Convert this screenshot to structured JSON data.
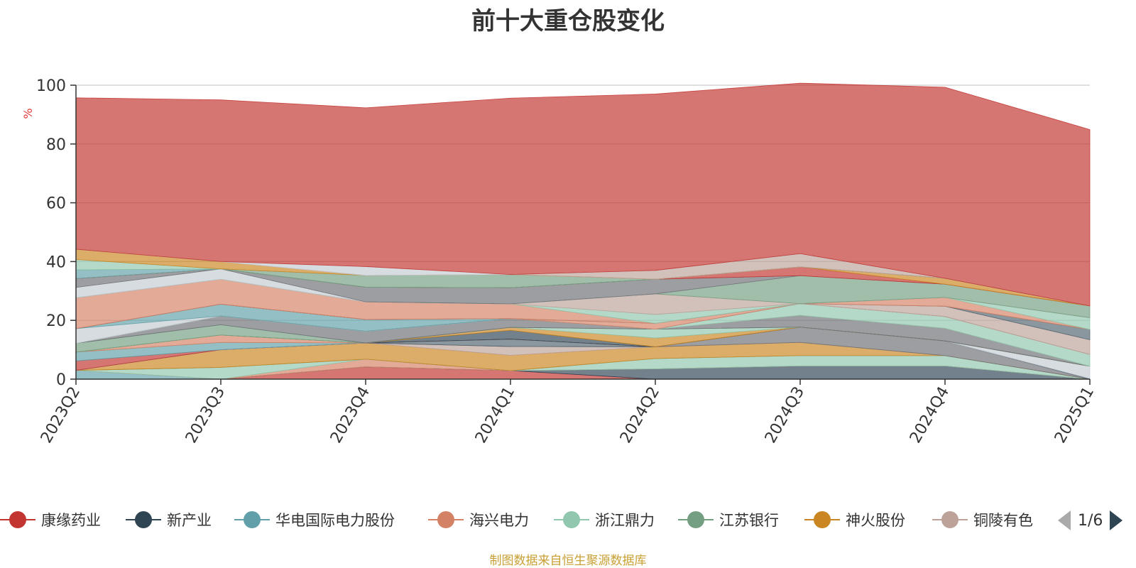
{
  "title": "前十大重仓股变化",
  "source_note": "制图数据来自恒生聚源数据库",
  "pager": {
    "text": "1/6"
  },
  "legend_icons": {
    "prev": "triangle-left-icon",
    "next": "triangle-right-icon"
  },
  "chart_data": {
    "type": "area",
    "stacked": true,
    "title": "前十大重仓股变化",
    "ylabel": "%",
    "ylim": [
      0,
      100
    ],
    "yticks": [
      0,
      20,
      40,
      60,
      80,
      100
    ],
    "grid": true,
    "legend_position": "bottom",
    "categories": [
      "2023Q2",
      "2023Q3",
      "2023Q4",
      "2024Q1",
      "2024Q2",
      "2024Q3",
      "2024Q4",
      "2025Q1"
    ],
    "legend": [
      {
        "name": "康缘药业",
        "color": "#c23531"
      },
      {
        "name": "新产业",
        "color": "#2f4554"
      },
      {
        "name": "华电国际电力股份",
        "color": "#61a0a8"
      },
      {
        "name": "海兴电力",
        "color": "#d48265"
      },
      {
        "name": "浙江鼎力",
        "color": "#91c7ae"
      },
      {
        "name": "江苏银行",
        "color": "#749f83"
      },
      {
        "name": "神火股份",
        "color": "#ca8622"
      },
      {
        "name": "铜陵有色",
        "color": "#bda29a"
      }
    ],
    "series": [
      {
        "color": "#c23531",
        "values": [
          0,
          0,
          4.2,
          2.9,
          0,
          0,
          0,
          0
        ]
      },
      {
        "color": "#2f4554",
        "values": [
          0,
          0,
          0,
          0,
          3.5,
          4.5,
          4.5,
          0
        ]
      },
      {
        "color": "#61a0a8",
        "values": [
          3.0,
          0,
          0,
          0,
          0,
          0,
          0,
          0
        ]
      },
      {
        "color": "#d48265",
        "values": [
          0,
          0,
          2.6,
          0,
          0,
          0,
          0,
          0
        ]
      },
      {
        "color": "#91c7ae",
        "values": [
          0,
          4.0,
          0,
          0,
          3.5,
          3.5,
          3.5,
          0
        ]
      },
      {
        "color": "#749f83",
        "values": [
          0,
          0,
          0,
          0,
          0,
          0,
          0,
          0
        ]
      },
      {
        "color": "#ca8622",
        "values": [
          0,
          6.0,
          5.5,
          5.2,
          4.0,
          4.5,
          0,
          0
        ]
      },
      {
        "color": "#bda29a",
        "values": [
          0,
          0,
          0,
          3.0,
          0,
          0,
          0,
          0
        ]
      },
      {
        "color": "#6e7074",
        "values": [
          0,
          0,
          0,
          0,
          0,
          5.2,
          5.0,
          0
        ]
      },
      {
        "color": "#546570",
        "values": [
          0,
          0,
          0,
          2.5,
          0,
          0,
          0,
          0.2
        ]
      },
      {
        "color": "#c4ccd3",
        "values": [
          0,
          0,
          0,
          0,
          0,
          0,
          0,
          4.2
        ]
      },
      {
        "color": "#c23531",
        "values": [
          3.2,
          0,
          0,
          0,
          0,
          0,
          0,
          0
        ]
      },
      {
        "color": "#61a0a8",
        "values": [
          3.0,
          2.5,
          0,
          0,
          0,
          0,
          0,
          0
        ]
      },
      {
        "color": "#d48265",
        "values": [
          0,
          2.5,
          0,
          0,
          0,
          0,
          0,
          0
        ]
      },
      {
        "color": "#2f4554",
        "values": [
          0,
          0,
          0,
          3.0,
          0,
          0,
          0,
          0
        ]
      },
      {
        "color": "#ca8622",
        "values": [
          0,
          0,
          0,
          1.0,
          3.0,
          0,
          0,
          0
        ]
      },
      {
        "color": "#91c7ae",
        "values": [
          0,
          0,
          0,
          0,
          3.0,
          0,
          0,
          0
        ]
      },
      {
        "color": "#749f83",
        "values": [
          3.0,
          3.5,
          0,
          0,
          0,
          0,
          0,
          0
        ]
      },
      {
        "color": "#6e7074",
        "values": [
          0,
          3.0,
          4.0,
          3.0,
          0,
          4.0,
          4.3,
          0
        ]
      },
      {
        "color": "#bda29a",
        "values": [
          0,
          0,
          0,
          0,
          0,
          0,
          0,
          0
        ]
      },
      {
        "color": "#91c7ae",
        "values": [
          0,
          0,
          0,
          0,
          0,
          4.0,
          4.0,
          4.0
        ]
      },
      {
        "color": "#c4ccd3",
        "values": [
          5.0,
          0,
          0,
          0,
          0,
          0,
          0,
          0
        ]
      },
      {
        "color": "#61a0a8",
        "values": [
          0,
          4.0,
          4.0,
          0,
          0,
          0,
          0,
          0
        ]
      },
      {
        "color": "#d48265",
        "values": [
          0,
          0,
          0,
          0,
          2.0,
          0,
          0,
          0
        ]
      },
      {
        "color": "#bda29a",
        "values": [
          0,
          0,
          0,
          0,
          0,
          0,
          3.5,
          5.0
        ]
      },
      {
        "color": "#546570",
        "values": [
          0,
          0,
          0,
          0,
          0,
          0,
          0,
          3.5
        ]
      },
      {
        "color": "#d48265",
        "values": [
          10.5,
          8.5,
          6.0,
          5.0,
          0,
          0,
          3.0,
          0
        ]
      },
      {
        "color": "#91c7ae",
        "values": [
          0,
          0,
          0,
          0,
          3.0,
          0,
          0,
          4.0
        ]
      },
      {
        "color": "#bda29a",
        "values": [
          0,
          0,
          0,
          0,
          7.0,
          0,
          0,
          0
        ]
      },
      {
        "color": "#749f83",
        "values": [
          0,
          0,
          0,
          0,
          0,
          9.5,
          4.5,
          4.0
        ]
      },
      {
        "color": "#c4ccd3",
        "values": [
          3.5,
          3.5,
          0,
          0,
          0,
          0,
          0,
          0
        ]
      },
      {
        "color": "#6e7074",
        "values": [
          3.0,
          0,
          5.0,
          5.5,
          5.0,
          0,
          0,
          0
        ]
      },
      {
        "color": "#c23531",
        "values": [
          0,
          0,
          0,
          0,
          0,
          3.0,
          0,
          0
        ]
      },
      {
        "color": "#ca8622",
        "values": [
          0,
          0,
          0,
          0,
          0,
          0,
          2.0,
          0
        ]
      },
      {
        "color": "#61a0a8",
        "values": [
          3.0,
          0,
          0,
          0,
          0,
          0,
          0,
          0
        ]
      },
      {
        "color": "#749f83",
        "values": [
          0,
          0,
          4.0,
          4.5,
          0,
          0,
          0,
          0
        ]
      },
      {
        "color": "#91c7ae",
        "values": [
          3.5,
          0,
          0,
          0,
          0,
          0,
          0,
          0
        ]
      },
      {
        "color": "#ca8622",
        "values": [
          3.5,
          2.5,
          0,
          0,
          0,
          0,
          0,
          0
        ]
      },
      {
        "color": "#bda29a",
        "values": [
          0,
          0,
          0,
          0,
          3.0,
          4.5,
          0,
          0
        ]
      },
      {
        "color": "#c4ccd3",
        "values": [
          0,
          0,
          3.0,
          0,
          0,
          0,
          0,
          0
        ]
      },
      {
        "color": "#c23531",
        "values": [
          51.5,
          55.0,
          54.0,
          60.0,
          60.0,
          58.0,
          65.0,
          60.0
        ]
      }
    ]
  }
}
